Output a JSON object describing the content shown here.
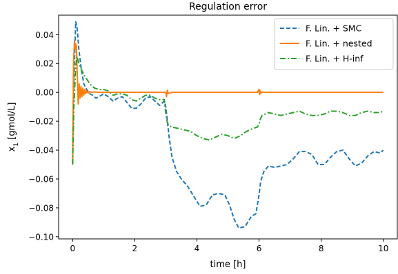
{
  "chart_data": {
    "type": "line",
    "title": "Regulation error",
    "xlabel": "time [h]",
    "ylabel": "x",
    "ylabel_sub": "1",
    "ylabel_unit": " [gmol/L]",
    "xlim": [
      -0.45,
      10.45
    ],
    "ylim": [
      -0.1015,
      0.0535
    ],
    "xticks": [
      0,
      2,
      4,
      6,
      8,
      10
    ],
    "yticks": [
      0.04,
      0.02,
      0.0,
      -0.02,
      -0.04,
      -0.06,
      -0.08,
      -0.1
    ],
    "ytick_labels": [
      "0.04",
      "0.02",
      "0.00",
      "−0.02",
      "−0.04",
      "−0.06",
      "−0.08",
      "−0.10"
    ],
    "legend_position": "top-right",
    "grid": false,
    "series": [
      {
        "name": "F. Lin. + SMC",
        "color": "#1f77b4",
        "dash": "dashed",
        "x": [
          0,
          0.03,
          0.1,
          0.15,
          0.2,
          0.28,
          0.36,
          0.45,
          0.55,
          0.65,
          0.75,
          0.85,
          1.0,
          1.15,
          1.3,
          1.45,
          1.6,
          1.75,
          1.9,
          2.05,
          2.2,
          2.35,
          2.5,
          2.65,
          2.8,
          2.95,
          3.0,
          3.05,
          3.1,
          3.2,
          3.35,
          3.5,
          3.7,
          3.9,
          4.1,
          4.3,
          4.5,
          4.7,
          4.9,
          5.05,
          5.2,
          5.35,
          5.55,
          5.75,
          5.9,
          6.0,
          6.05,
          6.15,
          6.3,
          6.5,
          6.7,
          6.9,
          7.1,
          7.3,
          7.5,
          7.7,
          7.9,
          8.1,
          8.3,
          8.5,
          8.7,
          8.9,
          9.1,
          9.3,
          9.5,
          9.7,
          9.9,
          10.0
        ],
        "y": [
          -0.05,
          0.0,
          0.049,
          0.044,
          0.03,
          0.016,
          0.006,
          0.002,
          -0.001,
          -0.002,
          -0.004,
          -0.003,
          -0.001,
          -0.003,
          -0.006,
          -0.004,
          -0.003,
          -0.007,
          -0.011,
          -0.011,
          -0.008,
          -0.004,
          -0.003,
          -0.006,
          -0.009,
          -0.006,
          -0.01,
          -0.02,
          -0.03,
          -0.045,
          -0.055,
          -0.06,
          -0.065,
          -0.072,
          -0.079,
          -0.078,
          -0.071,
          -0.07,
          -0.071,
          -0.078,
          -0.088,
          -0.094,
          -0.093,
          -0.086,
          -0.084,
          -0.071,
          -0.062,
          -0.055,
          -0.051,
          -0.052,
          -0.051,
          -0.05,
          -0.046,
          -0.041,
          -0.041,
          -0.043,
          -0.05,
          -0.05,
          -0.045,
          -0.041,
          -0.04,
          -0.046,
          -0.051,
          -0.049,
          -0.044,
          -0.041,
          -0.042,
          -0.04
        ]
      },
      {
        "name": "F. Lin. + nested",
        "color": "#ff7f0e",
        "dash": "solid",
        "x": [
          0,
          0.03,
          0.06,
          0.09,
          0.12,
          0.15,
          0.18,
          0.21,
          0.24,
          0.27,
          0.3,
          0.33,
          0.36,
          0.39,
          0.42,
          0.45,
          0.5,
          0.55,
          0.6,
          0.7,
          0.85,
          1.0,
          1.5,
          2.0,
          2.5,
          3.0,
          3.02,
          3.05,
          3.08,
          3.2,
          4.0,
          5.0,
          5.95,
          6.0,
          6.02,
          6.04,
          6.06,
          6.1,
          6.2,
          7.0,
          8.0,
          9.0,
          10.0
        ],
        "y": [
          -0.05,
          0.02,
          0.036,
          0.03,
          0.033,
          0.012,
          -0.008,
          0.006,
          -0.004,
          0.004,
          -0.003,
          0.003,
          -0.002,
          0.002,
          -0.001,
          0.001,
          -0.0005,
          0.0005,
          0.0,
          0.0003,
          0.0,
          0.0,
          0.0,
          0.0,
          0.0,
          0.0,
          -0.003,
          0.0015,
          -0.0008,
          0.0,
          0.0,
          0.0,
          0.0,
          0.0022,
          -0.0015,
          0.001,
          -0.0006,
          0.0003,
          0.0,
          0.0,
          0.0,
          0.0,
          0.0
        ]
      },
      {
        "name": "F. Lin. + H-inf",
        "color": "#2ca02c",
        "dash": "dashdot",
        "x": [
          0,
          0.04,
          0.1,
          0.14,
          0.2,
          0.3,
          0.4,
          0.55,
          0.7,
          0.85,
          1.0,
          1.15,
          1.3,
          1.45,
          1.6,
          1.75,
          1.9,
          2.05,
          2.2,
          2.35,
          2.5,
          2.65,
          2.8,
          2.95,
          3.0,
          3.05,
          3.1,
          3.2,
          3.4,
          3.6,
          3.8,
          4.0,
          4.2,
          4.4,
          4.6,
          4.8,
          5.0,
          5.2,
          5.4,
          5.6,
          5.8,
          5.95,
          6.0,
          6.05,
          6.1,
          6.3,
          6.5,
          6.7,
          6.9,
          7.1,
          7.3,
          7.5,
          7.7,
          7.9,
          8.1,
          8.3,
          8.5,
          8.7,
          8.9,
          9.1,
          9.3,
          9.5,
          9.7,
          9.9,
          10.0
        ],
        "y": [
          -0.05,
          -0.01,
          0.018,
          0.025,
          0.02,
          0.015,
          0.011,
          0.006,
          0.003,
          0.002,
          0.002,
          0.001,
          -0.002,
          -0.001,
          -0.001,
          -0.002,
          -0.005,
          -0.006,
          -0.004,
          -0.002,
          -0.002,
          -0.004,
          -0.005,
          -0.005,
          -0.015,
          -0.021,
          -0.023,
          -0.024,
          -0.025,
          -0.026,
          -0.027,
          -0.03,
          -0.032,
          -0.033,
          -0.031,
          -0.029,
          -0.03,
          -0.032,
          -0.03,
          -0.027,
          -0.025,
          -0.024,
          -0.022,
          -0.018,
          -0.016,
          -0.014,
          -0.015,
          -0.016,
          -0.015,
          -0.014,
          -0.013,
          -0.015,
          -0.016,
          -0.016,
          -0.015,
          -0.013,
          -0.013,
          -0.014,
          -0.016,
          -0.016,
          -0.014,
          -0.013,
          -0.014,
          -0.014,
          -0.013
        ]
      }
    ]
  }
}
